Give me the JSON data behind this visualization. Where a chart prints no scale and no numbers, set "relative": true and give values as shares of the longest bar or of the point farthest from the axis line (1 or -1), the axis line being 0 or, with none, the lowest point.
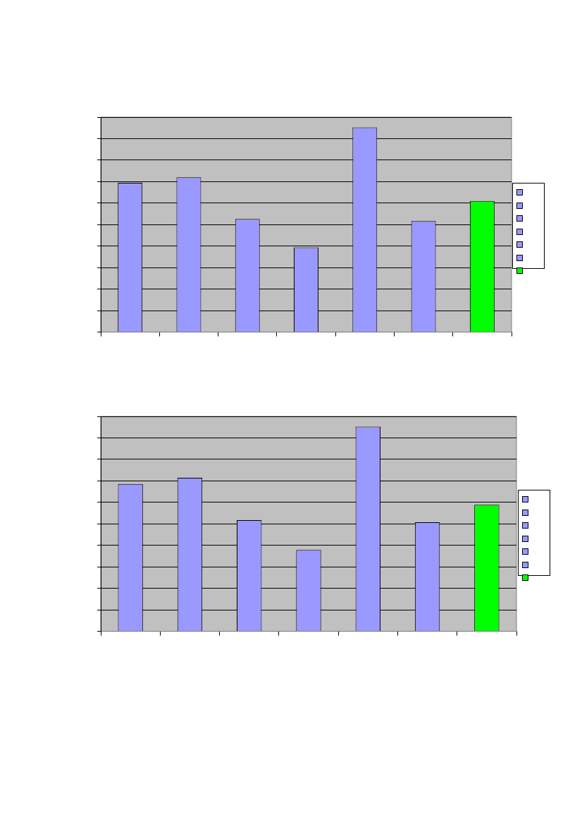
{
  "chart_data": [
    {
      "type": "bar",
      "relative": true,
      "categories": [
        null,
        null,
        null,
        null,
        null,
        null,
        null
      ],
      "values": [
        0.729,
        0.756,
        0.553,
        0.414,
        1,
        0.542,
        0.641
      ],
      "colors": [
        "#9999ff",
        "#9999ff",
        "#9999ff",
        "#9999ff",
        "#9999ff",
        "#9999ff",
        "#00ff00"
      ],
      "grid": "y"
    },
    {
      "type": "bar",
      "relative": true,
      "categories": [
        null,
        null,
        null,
        null,
        null,
        null,
        null
      ],
      "values": [
        0.72,
        0.75,
        0.543,
        0.398,
        1,
        0.533,
        0.618
      ],
      "colors": [
        "#9999ff",
        "#9999ff",
        "#9999ff",
        "#9999ff",
        "#9999ff",
        "#9999ff",
        "#00ff00"
      ],
      "grid": "y"
    }
  ]
}
